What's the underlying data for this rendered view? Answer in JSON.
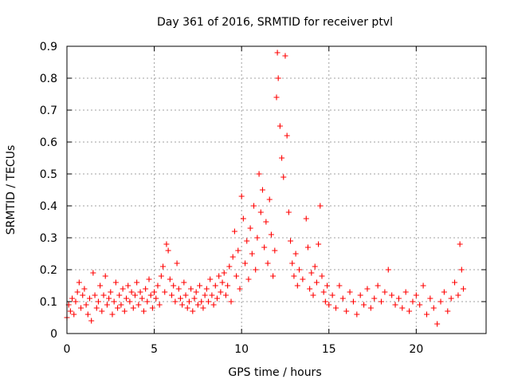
{
  "chart_data": {
    "type": "scatter",
    "title": "Day 361 of 2016, SRMTID for receiver ptvl",
    "xlabel": "GPS time / hours",
    "ylabel": "SRMTID / TECUs",
    "xlim": [
      0,
      24
    ],
    "ylim": [
      0,
      0.9
    ],
    "xticks": [
      0,
      5,
      10,
      15,
      20
    ],
    "yticks": [
      0,
      0.1,
      0.2,
      0.3,
      0.4,
      0.5,
      0.6,
      0.7,
      0.8,
      0.9
    ],
    "xtick_labels": [
      "0",
      "5",
      "10",
      "15",
      "20"
    ],
    "ytick_labels": [
      "0",
      "0.1",
      "0.2",
      "0.3",
      "0.4",
      "0.5",
      "0.6",
      "0.7",
      "0.8",
      "0.9"
    ],
    "grid": true,
    "marker": "+",
    "color": "#ff0000",
    "series": [
      {
        "name": "SRMTID",
        "points": [
          [
            0.0,
            0.05
          ],
          [
            0.1,
            0.09
          ],
          [
            0.2,
            0.07
          ],
          [
            0.3,
            0.11
          ],
          [
            0.4,
            0.06
          ],
          [
            0.5,
            0.1
          ],
          [
            0.6,
            0.13
          ],
          [
            0.7,
            0.16
          ],
          [
            0.8,
            0.08
          ],
          [
            0.9,
            0.12
          ],
          [
            1.0,
            0.14
          ],
          [
            1.1,
            0.09
          ],
          [
            1.2,
            0.06
          ],
          [
            1.3,
            0.11
          ],
          [
            1.4,
            0.04
          ],
          [
            1.5,
            0.19
          ],
          [
            1.6,
            0.12
          ],
          [
            1.7,
            0.08
          ],
          [
            1.8,
            0.1
          ],
          [
            1.9,
            0.15
          ],
          [
            2.0,
            0.07
          ],
          [
            2.1,
            0.12
          ],
          [
            2.2,
            0.18
          ],
          [
            2.3,
            0.09
          ],
          [
            2.4,
            0.11
          ],
          [
            2.5,
            0.13
          ],
          [
            2.6,
            0.06
          ],
          [
            2.7,
            0.1
          ],
          [
            2.8,
            0.16
          ],
          [
            2.9,
            0.08
          ],
          [
            3.0,
            0.12
          ],
          [
            3.1,
            0.09
          ],
          [
            3.2,
            0.14
          ],
          [
            3.3,
            0.07
          ],
          [
            3.4,
            0.11
          ],
          [
            3.5,
            0.15
          ],
          [
            3.6,
            0.1
          ],
          [
            3.7,
            0.13
          ],
          [
            3.8,
            0.08
          ],
          [
            3.9,
            0.12
          ],
          [
            4.0,
            0.16
          ],
          [
            4.1,
            0.09
          ],
          [
            4.2,
            0.13
          ],
          [
            4.3,
            0.11
          ],
          [
            4.4,
            0.07
          ],
          [
            4.5,
            0.14
          ],
          [
            4.6,
            0.1
          ],
          [
            4.7,
            0.17
          ],
          [
            4.8,
            0.12
          ],
          [
            4.9,
            0.08
          ],
          [
            5.0,
            0.13
          ],
          [
            5.1,
            0.11
          ],
          [
            5.2,
            0.15
          ],
          [
            5.3,
            0.09
          ],
          [
            5.4,
            0.18
          ],
          [
            5.5,
            0.21
          ],
          [
            5.6,
            0.13
          ],
          [
            5.7,
            0.28
          ],
          [
            5.8,
            0.26
          ],
          [
            5.9,
            0.17
          ],
          [
            6.0,
            0.12
          ],
          [
            6.1,
            0.15
          ],
          [
            6.2,
            0.1
          ],
          [
            6.3,
            0.22
          ],
          [
            6.4,
            0.14
          ],
          [
            6.5,
            0.11
          ],
          [
            6.6,
            0.09
          ],
          [
            6.7,
            0.16
          ],
          [
            6.8,
            0.12
          ],
          [
            6.9,
            0.08
          ],
          [
            7.0,
            0.1
          ],
          [
            7.1,
            0.14
          ],
          [
            7.2,
            0.07
          ],
          [
            7.3,
            0.11
          ],
          [
            7.4,
            0.13
          ],
          [
            7.5,
            0.09
          ],
          [
            7.6,
            0.15
          ],
          [
            7.7,
            0.1
          ],
          [
            7.8,
            0.08
          ],
          [
            7.9,
            0.12
          ],
          [
            8.0,
            0.14
          ],
          [
            8.1,
            0.1
          ],
          [
            8.2,
            0.17
          ],
          [
            8.3,
            0.12
          ],
          [
            8.4,
            0.09
          ],
          [
            8.5,
            0.15
          ],
          [
            8.6,
            0.11
          ],
          [
            8.7,
            0.18
          ],
          [
            8.8,
            0.13
          ],
          [
            8.9,
            0.16
          ],
          [
            9.0,
            0.19
          ],
          [
            9.1,
            0.12
          ],
          [
            9.2,
            0.15
          ],
          [
            9.3,
            0.21
          ],
          [
            9.4,
            0.1
          ],
          [
            9.5,
            0.24
          ],
          [
            9.6,
            0.32
          ],
          [
            9.7,
            0.18
          ],
          [
            9.8,
            0.26
          ],
          [
            9.9,
            0.14
          ],
          [
            10.0,
            0.43
          ],
          [
            10.1,
            0.36
          ],
          [
            10.2,
            0.22
          ],
          [
            10.3,
            0.29
          ],
          [
            10.4,
            0.17
          ],
          [
            10.5,
            0.33
          ],
          [
            10.6,
            0.25
          ],
          [
            10.7,
            0.4
          ],
          [
            10.8,
            0.2
          ],
          [
            10.9,
            0.3
          ],
          [
            11.0,
            0.5
          ],
          [
            11.1,
            0.38
          ],
          [
            11.2,
            0.45
          ],
          [
            11.3,
            0.27
          ],
          [
            11.4,
            0.35
          ],
          [
            11.5,
            0.22
          ],
          [
            11.6,
            0.42
          ],
          [
            11.7,
            0.31
          ],
          [
            11.8,
            0.18
          ],
          [
            11.9,
            0.26
          ],
          [
            12.0,
            0.74
          ],
          [
            12.05,
            0.88
          ],
          [
            12.1,
            0.8
          ],
          [
            12.2,
            0.65
          ],
          [
            12.3,
            0.55
          ],
          [
            12.4,
            0.49
          ],
          [
            12.5,
            0.87
          ],
          [
            12.6,
            0.62
          ],
          [
            12.7,
            0.38
          ],
          [
            12.8,
            0.29
          ],
          [
            12.9,
            0.22
          ],
          [
            13.0,
            0.18
          ],
          [
            13.1,
            0.25
          ],
          [
            13.2,
            0.15
          ],
          [
            13.3,
            0.2
          ],
          [
            13.5,
            0.17
          ],
          [
            13.7,
            0.36
          ],
          [
            13.8,
            0.27
          ],
          [
            13.9,
            0.14
          ],
          [
            14.0,
            0.19
          ],
          [
            14.1,
            0.12
          ],
          [
            14.2,
            0.21
          ],
          [
            14.3,
            0.16
          ],
          [
            14.4,
            0.28
          ],
          [
            14.5,
            0.4
          ],
          [
            14.6,
            0.18
          ],
          [
            14.7,
            0.13
          ],
          [
            14.8,
            0.1
          ],
          [
            14.9,
            0.15
          ],
          [
            15.0,
            0.09
          ],
          [
            15.2,
            0.12
          ],
          [
            15.4,
            0.08
          ],
          [
            15.6,
            0.15
          ],
          [
            15.8,
            0.11
          ],
          [
            16.0,
            0.07
          ],
          [
            16.2,
            0.13
          ],
          [
            16.4,
            0.1
          ],
          [
            16.6,
            0.06
          ],
          [
            16.8,
            0.12
          ],
          [
            17.0,
            0.09
          ],
          [
            17.2,
            0.14
          ],
          [
            17.4,
            0.08
          ],
          [
            17.6,
            0.11
          ],
          [
            17.8,
            0.15
          ],
          [
            18.0,
            0.1
          ],
          [
            18.2,
            0.13
          ],
          [
            18.4,
            0.2
          ],
          [
            18.6,
            0.12
          ],
          [
            18.8,
            0.09
          ],
          [
            19.0,
            0.11
          ],
          [
            19.2,
            0.08
          ],
          [
            19.4,
            0.13
          ],
          [
            19.6,
            0.07
          ],
          [
            19.8,
            0.1
          ],
          [
            20.0,
            0.12
          ],
          [
            20.2,
            0.09
          ],
          [
            20.4,
            0.15
          ],
          [
            20.6,
            0.06
          ],
          [
            20.8,
            0.11
          ],
          [
            21.0,
            0.08
          ],
          [
            21.2,
            0.03
          ],
          [
            21.4,
            0.1
          ],
          [
            21.6,
            0.13
          ],
          [
            21.8,
            0.07
          ],
          [
            22.0,
            0.11
          ],
          [
            22.2,
            0.16
          ],
          [
            22.4,
            0.12
          ],
          [
            22.5,
            0.28
          ],
          [
            22.6,
            0.2
          ],
          [
            22.7,
            0.14
          ]
        ]
      }
    ]
  }
}
